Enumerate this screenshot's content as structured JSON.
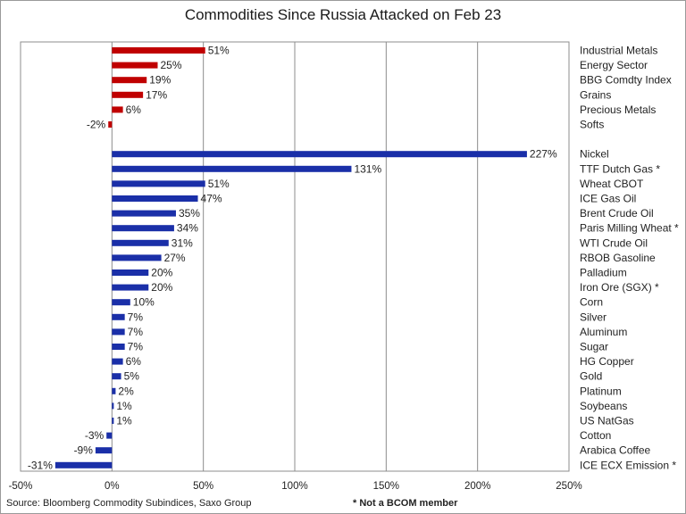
{
  "chart_data": {
    "type": "bar",
    "orientation": "horizontal",
    "title": "Commodities Since Russia Attacked on Feb 23",
    "xlim": [
      -50,
      250
    ],
    "x_ticks": [
      "-50%",
      "0%",
      "50%",
      "100%",
      "150%",
      "200%",
      "250%"
    ],
    "x_tick_values": [
      -50,
      0,
      50,
      100,
      150,
      200,
      250
    ],
    "grid": "vertical",
    "groups": [
      {
        "color": "#c00000",
        "categories": [
          "Industrial Metals",
          "Energy Sector",
          "BBG Comdty Index",
          "Grains",
          "Precious Metals",
          "Softs"
        ],
        "values": [
          51,
          25,
          19,
          17,
          6,
          -2
        ],
        "labels": [
          "51%",
          "25%",
          "19%",
          "17%",
          "6%",
          "-2%"
        ]
      },
      {
        "color": "#1a2fa8",
        "categories": [
          "Nickel",
          "TTF Dutch Gas *",
          "Wheat CBOT",
          "ICE Gas Oil",
          "Brent Crude Oil",
          "Paris Milling Wheat *",
          "WTI Crude Oil",
          "RBOB Gasoline",
          "Palladium",
          "Iron Ore (SGX) *",
          "Corn",
          "Silver",
          "Aluminum",
          "Sugar",
          "HG Copper",
          "Gold",
          "Platinum",
          "Soybeans",
          "US NatGas",
          "Cotton",
          "Arabica Coffee",
          "ICE ECX Emission *"
        ],
        "values": [
          227,
          131,
          51,
          47,
          35,
          34,
          31,
          27,
          20,
          20,
          10,
          7,
          7,
          7,
          6,
          5,
          2,
          1,
          1,
          -3,
          -9,
          -31
        ],
        "labels": [
          "227%",
          "131%",
          "51%",
          "47%",
          "35%",
          "34%",
          "31%",
          "27%",
          "20%",
          "20%",
          "10%",
          "7%",
          "7%",
          "7%",
          "6%",
          "5%",
          "2%",
          "1%",
          "1%",
          "-3%",
          "-9%",
          "-31%"
        ]
      }
    ]
  },
  "footer": {
    "source": "Source: Bloomberg Commodity Subindices, Saxo Group",
    "note": "* Not a BCOM member"
  }
}
